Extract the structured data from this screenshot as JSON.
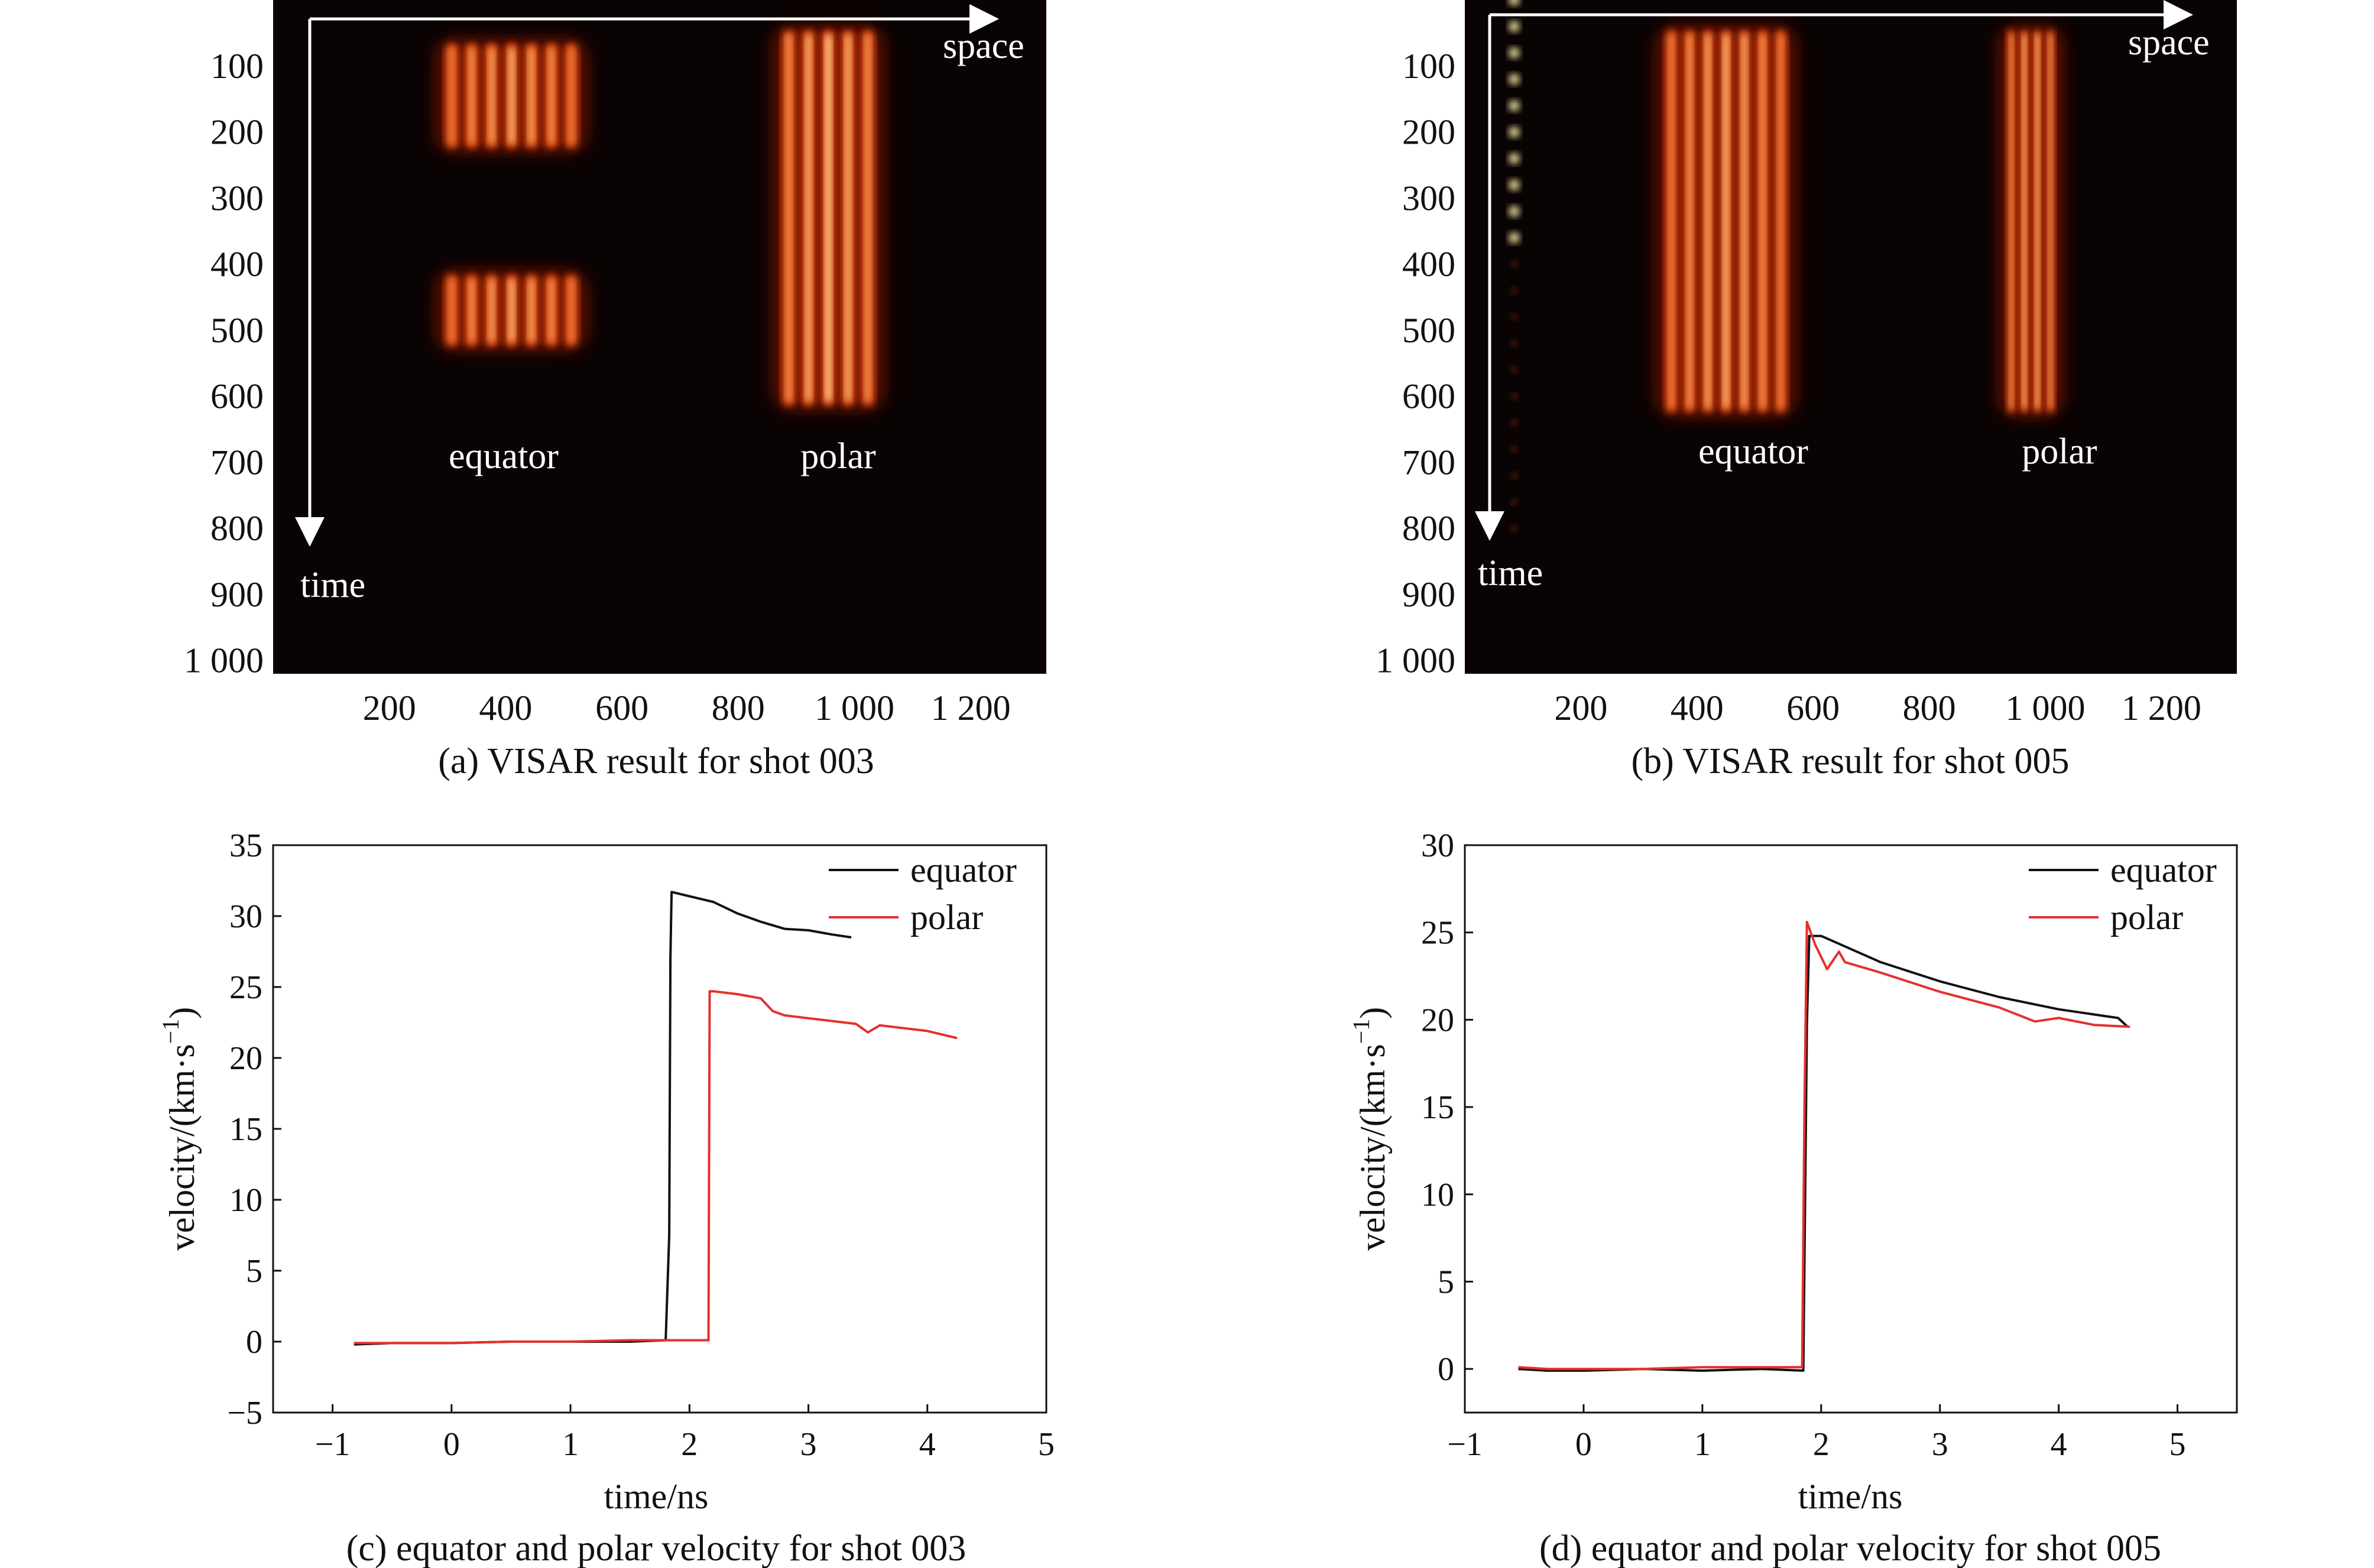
{
  "colors": {
    "equator": "#111111",
    "polar": "#e4302c",
    "streak_bg": "#0a0303",
    "streak_hot": "#fff0a8",
    "streak_mid": "#ff5a16",
    "streak_low": "#8a1206"
  },
  "chart_data": [
    {
      "id": "a",
      "type": "heatmap",
      "title": "(a) VISAR result for shot 003",
      "x_tick_labels": [
        "200",
        "400",
        "600",
        "800",
        "1 000",
        "1 200"
      ],
      "y_tick_labels": [
        "100",
        "200",
        "300",
        "400",
        "500",
        "600",
        "700",
        "800",
        "900",
        "1 000"
      ],
      "xlim": [
        0,
        1330
      ],
      "ylim": [
        0,
        1020
      ],
      "arrow_labels": {
        "space": "space",
        "time": "time"
      },
      "regions": [
        {
          "label": "equator",
          "x_range": [
            290,
            530
          ],
          "t_ranges": [
            [
              60,
              230
            ],
            [
              410,
              530
            ]
          ],
          "fringes": 7,
          "intensity": 0.8,
          "label_pos": [
            400,
            700
          ]
        },
        {
          "label": "polar",
          "x_range": [
            870,
            1040
          ],
          "t_ranges": [
            [
              40,
              620
            ]
          ],
          "fringes": 5,
          "intensity": 1.0,
          "label_pos": [
            960,
            700
          ]
        }
      ]
    },
    {
      "id": "b",
      "type": "heatmap",
      "title": "(b) VISAR result for shot 005",
      "x_tick_labels": [
        "200",
        "400",
        "600",
        "800",
        "1 000",
        "1 200"
      ],
      "y_tick_labels": [
        "100",
        "200",
        "300",
        "400",
        "500",
        "600",
        "700",
        "800",
        "900",
        "1 000"
      ],
      "xlim": [
        0,
        1330
      ],
      "ylim": [
        0,
        1020
      ],
      "arrow_labels": {
        "space": "space",
        "time": "time"
      },
      "regions": [
        {
          "label": "equator",
          "x_range": [
            340,
            560
          ],
          "t_ranges": [
            [
              40,
              630
            ]
          ],
          "fringes": 7,
          "intensity": 0.85,
          "label_pos": [
            460,
            695
          ]
        },
        {
          "label": "polar",
          "x_range": [
            930,
            1020
          ],
          "t_ranges": [
            [
              40,
              630
            ]
          ],
          "fringes": 4,
          "intensity": 1.0,
          "label_pos": [
            990,
            695
          ]
        }
      ]
    },
    {
      "id": "c",
      "type": "line",
      "title": "(c) equator and polar velocity for shot 003",
      "xlabel": "time/ns",
      "ylabel": "velocity/(km·s",
      "ylabel_exp": "−1",
      "ylabel_close": ")",
      "xlim": [
        -1.5,
        5
      ],
      "ylim": [
        -5,
        35
      ],
      "x_tick_values": [
        -1,
        0,
        1,
        2,
        3,
        4,
        5
      ],
      "x_tick_labels": [
        "−1",
        "0",
        "1",
        "2",
        "3",
        "4",
        "5"
      ],
      "y_tick_values": [
        -5,
        0,
        5,
        10,
        15,
        20,
        25,
        30,
        35
      ],
      "y_tick_labels": [
        "−5",
        "0",
        "5",
        "10",
        "15",
        "20",
        "25",
        "30",
        "35"
      ],
      "legend": [
        "equator",
        "polar"
      ],
      "series": [
        {
          "name": "equator",
          "x": [
            -0.82,
            -0.5,
            0,
            0.5,
            1.0,
            1.5,
            1.8,
            1.83,
            1.84,
            1.85,
            2.0,
            2.2,
            2.4,
            2.6,
            2.8,
            3.0,
            3.2,
            3.36
          ],
          "y": [
            -0.2,
            -0.1,
            -0.1,
            0.0,
            0.0,
            0.0,
            0.1,
            7.5,
            27.0,
            31.7,
            31.4,
            31.0,
            30.2,
            29.6,
            29.1,
            29.0,
            28.7,
            28.5
          ]
        },
        {
          "name": "polar",
          "x": [
            -0.82,
            -0.5,
            0,
            0.5,
            1.0,
            1.5,
            1.85,
            2.0,
            2.16,
            2.17,
            2.2,
            2.4,
            2.6,
            2.7,
            2.8,
            3.0,
            3.2,
            3.4,
            3.5,
            3.6,
            3.8,
            4.0,
            4.25
          ],
          "y": [
            -0.1,
            -0.1,
            -0.1,
            0.0,
            0.0,
            0.1,
            0.1,
            0.1,
            0.1,
            24.7,
            24.7,
            24.5,
            24.2,
            23.3,
            23.0,
            22.8,
            22.6,
            22.4,
            21.8,
            22.3,
            22.1,
            21.9,
            21.4
          ]
        }
      ]
    },
    {
      "id": "d",
      "type": "line",
      "title": "(d) equator and polar velocity for shot 005",
      "xlabel": "time/ns",
      "ylabel": "velocity/(km·s",
      "ylabel_exp": "−1",
      "ylabel_close": ")",
      "xlim": [
        -1,
        5.5
      ],
      "ylim": [
        -2.5,
        30
      ],
      "x_tick_values": [
        -1,
        0,
        1,
        2,
        3,
        4,
        5
      ],
      "x_tick_labels": [
        "−1",
        "0",
        "1",
        "2",
        "3",
        "4",
        "5"
      ],
      "y_tick_values": [
        0,
        5,
        10,
        15,
        20,
        25,
        30
      ],
      "y_tick_labels": [
        "0",
        "5",
        "10",
        "15",
        "20",
        "25",
        "30"
      ],
      "legend": [
        "equator",
        "polar"
      ],
      "series": [
        {
          "name": "equator",
          "x": [
            -0.55,
            -0.3,
            0,
            0.5,
            1.0,
            1.5,
            1.85,
            1.88,
            1.9,
            2.0,
            2.2,
            2.5,
            3.0,
            3.5,
            4.0,
            4.5,
            4.58
          ],
          "y": [
            0.0,
            -0.1,
            -0.1,
            0.0,
            -0.1,
            0.0,
            -0.1,
            19.8,
            24.8,
            24.8,
            24.2,
            23.3,
            22.2,
            21.3,
            20.6,
            20.1,
            19.6
          ]
        },
        {
          "name": "polar",
          "x": [
            -0.55,
            -0.3,
            0,
            0.5,
            1.0,
            1.5,
            1.84,
            1.86,
            1.88,
            1.95,
            2.05,
            2.15,
            2.2,
            2.5,
            3.0,
            3.5,
            3.8,
            4.0,
            4.3,
            4.6
          ],
          "y": [
            0.1,
            0.0,
            0.0,
            0.0,
            0.1,
            0.1,
            0.1,
            15.0,
            25.6,
            24.3,
            22.9,
            23.9,
            23.3,
            22.7,
            21.6,
            20.7,
            19.9,
            20.1,
            19.7,
            19.6
          ]
        }
      ]
    }
  ]
}
